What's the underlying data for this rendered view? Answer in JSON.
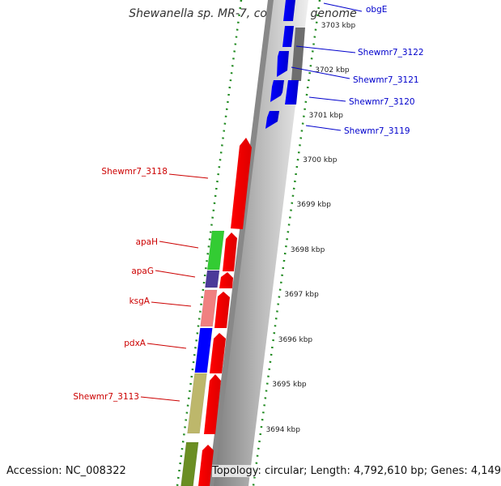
{
  "title": "Shewanella sp. MR-7, complete genome",
  "footer": {
    "accession": "Accession: NC_008322",
    "summary": "Topology: circular; Length: 4,792,610 bp; Genes: 4,149"
  },
  "colors": {
    "background": "#ffffff",
    "tick_color": "#228b22",
    "backbone_light": "#cfcfcf",
    "backbone_dark": "#7a7a7a",
    "forward_strand": "#ff0000",
    "reverse_strand": "#0000ff",
    "reverse_label": "#0000cc",
    "forward_label": "#cc0000"
  },
  "scale_labels": [
    "3703 kbp",
    "3702 kbp",
    "3701 kbp",
    "3700 kbp",
    "3699 kbp",
    "3698 kbp",
    "3697 kbp",
    "3696 kbp",
    "3695 kbp",
    "3694 kbp"
  ],
  "genes_right": [
    {
      "label": "obgE"
    },
    {
      "label": "Shewmr7_3122"
    },
    {
      "label": "Shewmr7_3121"
    },
    {
      "label": "Shewmr7_3120"
    },
    {
      "label": "Shewmr7_3119"
    }
  ],
  "genes_left": [
    {
      "label": "Shewmr7_3118"
    },
    {
      "label": "apaH"
    },
    {
      "label": "apaG"
    },
    {
      "label": "ksgA"
    },
    {
      "label": "pdxA"
    },
    {
      "label": "Shewmr7_3113"
    }
  ],
  "category_boxes": [
    {
      "name": "apaH-category",
      "color": "#33cc33"
    },
    {
      "name": "apaG-category",
      "color": "#4b3a99"
    },
    {
      "name": "ksgA-category",
      "color": "#f08080"
    },
    {
      "name": "pdxA-category",
      "color": "#0000ff"
    },
    {
      "name": "Shewmr7_3113-category",
      "color": "#bdb76b"
    },
    {
      "name": "next-gene-category",
      "color": "#6b8e23"
    }
  ]
}
